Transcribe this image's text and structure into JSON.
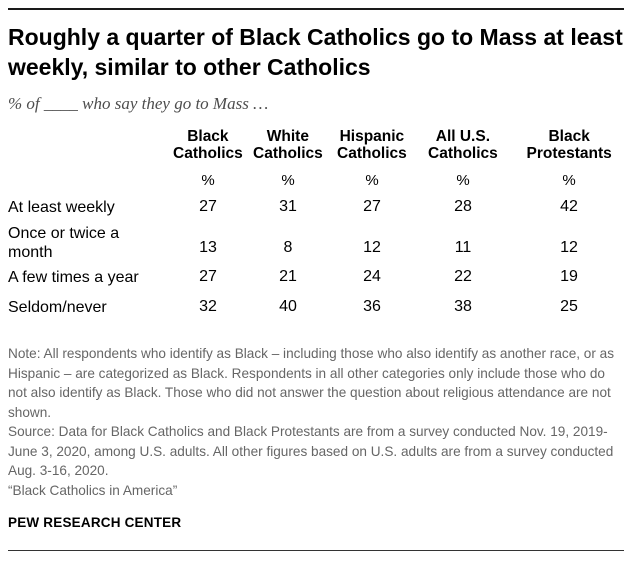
{
  "chart_data": {
    "type": "table",
    "title": "Roughly a quarter of Black Catholics go to Mass at least weekly, similar to other Catholics",
    "subtitle": "% of ____ who say they go to Mass …",
    "columns": [
      {
        "line1": "Black",
        "line2": "Catholics",
        "unit": "%"
      },
      {
        "line1": "White",
        "line2": "Catholics",
        "unit": "%"
      },
      {
        "line1": "Hispanic",
        "line2": "Catholics",
        "unit": "%"
      },
      {
        "line1": "All U.S.",
        "line2": "Catholics",
        "unit": "%"
      },
      {
        "line1": "Black",
        "line2": "Protestants",
        "unit": "%"
      }
    ],
    "rows": [
      {
        "label_lines": [
          "At least weekly"
        ],
        "values": [
          27,
          31,
          27,
          28,
          42
        ]
      },
      {
        "label_lines": [
          "Once or twice a",
          "month"
        ],
        "values": [
          13,
          8,
          12,
          11,
          12
        ]
      },
      {
        "label_lines": [
          "A few times a year"
        ],
        "values": [
          27,
          21,
          24,
          22,
          19
        ]
      },
      {
        "label_lines": [
          "Seldom/never"
        ],
        "values": [
          32,
          40,
          36,
          38,
          25
        ]
      }
    ]
  },
  "footer": {
    "note": "Note: All respondents who identify as Black – including those who also identify as another race, or as Hispanic – are categorized as Black. Respondents in all other categories only include those who do not also identify as Black. Those who did not answer the question about religious attendance are not shown.",
    "source": "Source: Data for Black Catholics and Black Protestants are from a survey conducted Nov. 19, 2019-June 3, 2020, among U.S. adults. All other figures based on U.S. adults are from a survey conducted Aug. 3-16, 2020.",
    "report": "“Black Catholics in America”",
    "brand": "PEW RESEARCH CENTER"
  }
}
